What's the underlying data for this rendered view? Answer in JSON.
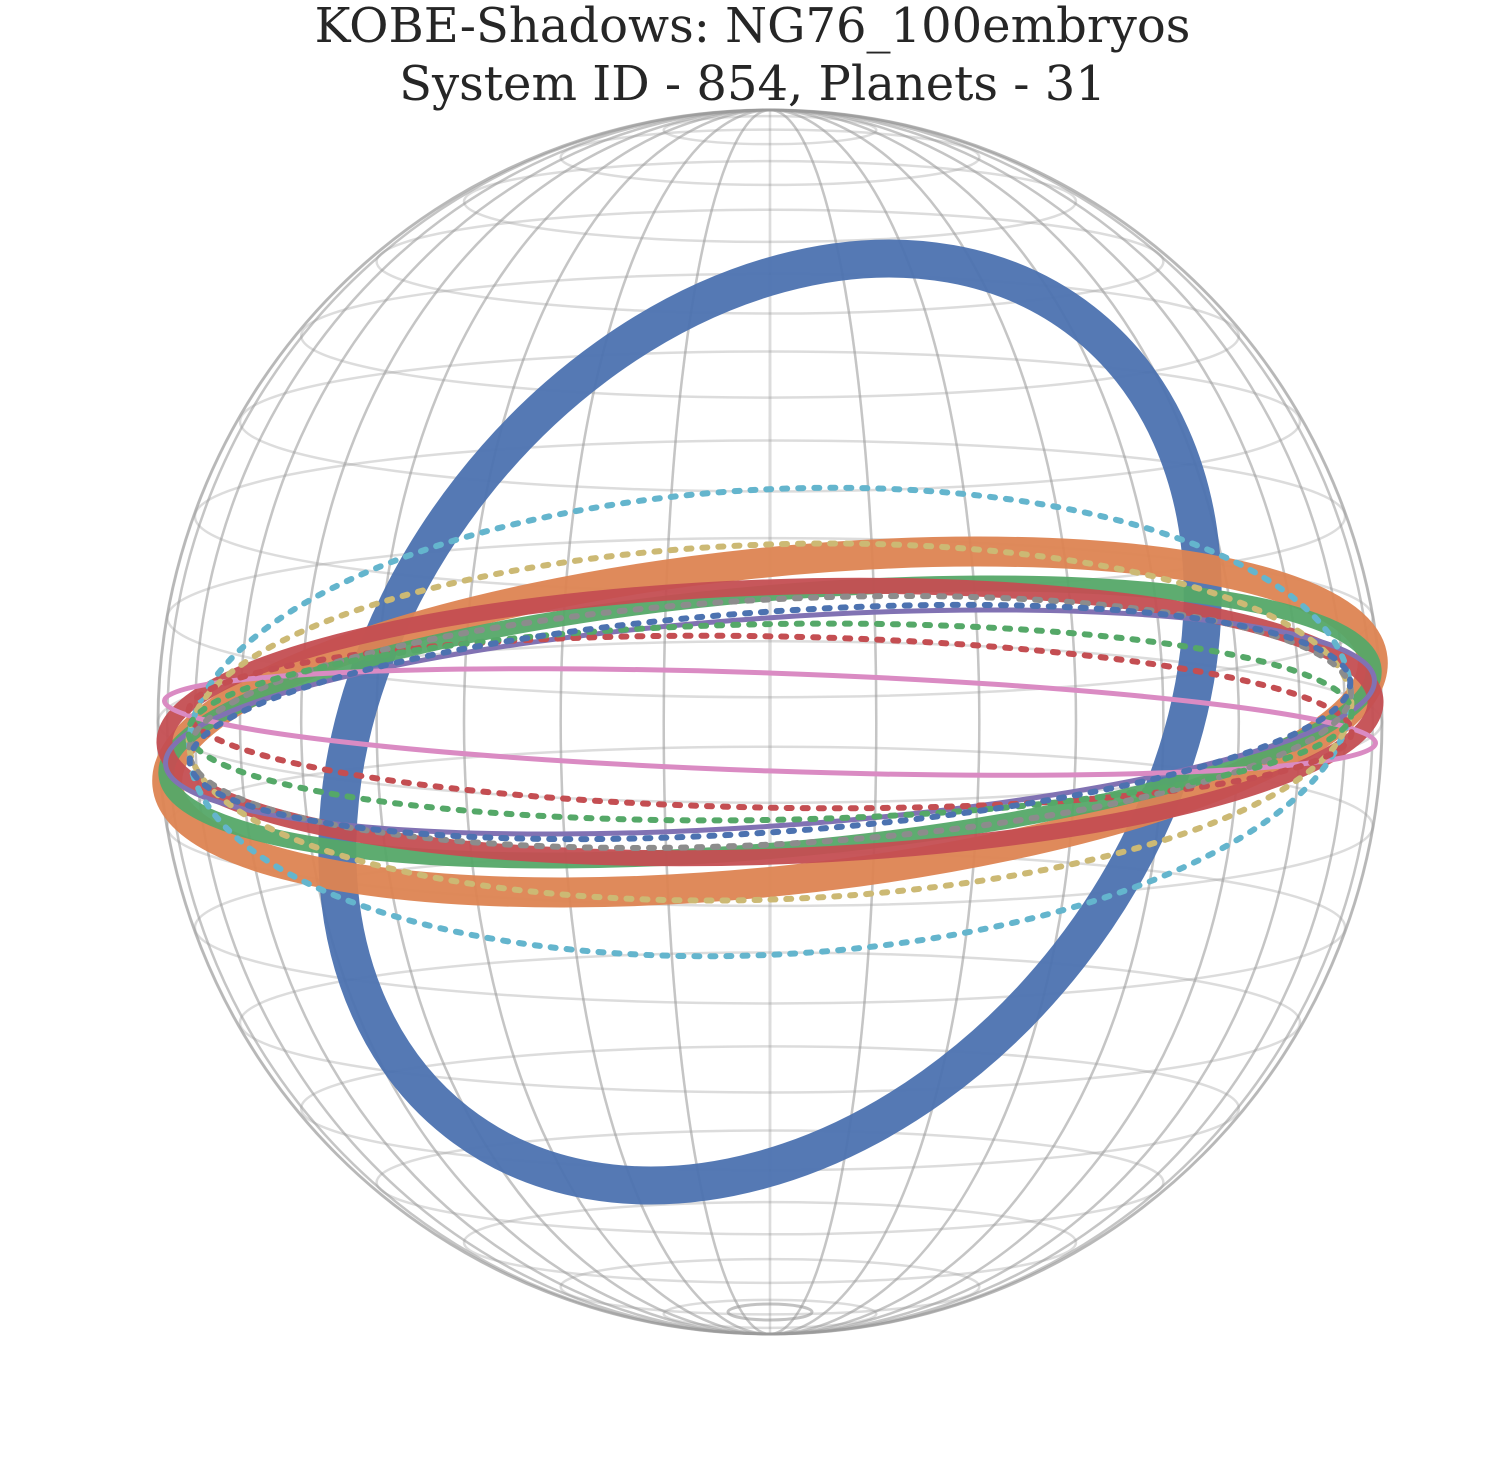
{
  "figure": {
    "title_line1": "KOBE-Shadows: NG76_100embryos",
    "title_line2": "System ID - 854, Planets - 31"
  },
  "chart_data": {
    "type": "scatter",
    "title": "KOBE-Shadows: NG76_100embryos\nSystem ID - 854, Planets - 31",
    "projection": "3d-sphere",
    "grid": true,
    "grid_color": "#9a9a9a",
    "palette": [
      "#4c72b0",
      "#dd8452",
      "#55a868",
      "#c44e52",
      "#8172b3",
      "#937860",
      "#da8bc3",
      "#8c8c8c",
      "#ccb974",
      "#64b5cd"
    ],
    "shadows": [
      {
        "color": "#4c72b0",
        "style": "band",
        "tilt_deg": -52,
        "opening": 0.62
      },
      {
        "color": "#dd8452",
        "style": "band",
        "tilt_deg": -6,
        "opening": 0.26
      },
      {
        "color": "#55a868",
        "style": "band",
        "tilt_deg": -5,
        "opening": 0.21
      },
      {
        "color": "#c44e52",
        "style": "band",
        "tilt_deg": -2,
        "opening": 0.22
      },
      {
        "color": "#8172b3",
        "style": "ring",
        "tilt_deg": -4,
        "opening": 0.17
      },
      {
        "color": "#da8bc3",
        "style": "ring",
        "tilt_deg": 2,
        "opening": 0.08
      },
      {
        "color": "#64b5cd",
        "style": "dotted",
        "tilt_deg": -3,
        "opening": 0.38
      },
      {
        "color": "#ccb974",
        "style": "dotted",
        "tilt_deg": -2,
        "opening": 0.29
      },
      {
        "color": "#c44e52",
        "style": "dotted",
        "tilt_deg": 1,
        "opening": 0.14
      },
      {
        "color": "#8c8c8c",
        "style": "dotted",
        "tilt_deg": -3,
        "opening": 0.2
      },
      {
        "color": "#55a868",
        "style": "dotted",
        "tilt_deg": -1,
        "opening": 0.16
      },
      {
        "color": "#4c72b0",
        "style": "dotted",
        "tilt_deg": -4,
        "opening": 0.18
      }
    ]
  }
}
